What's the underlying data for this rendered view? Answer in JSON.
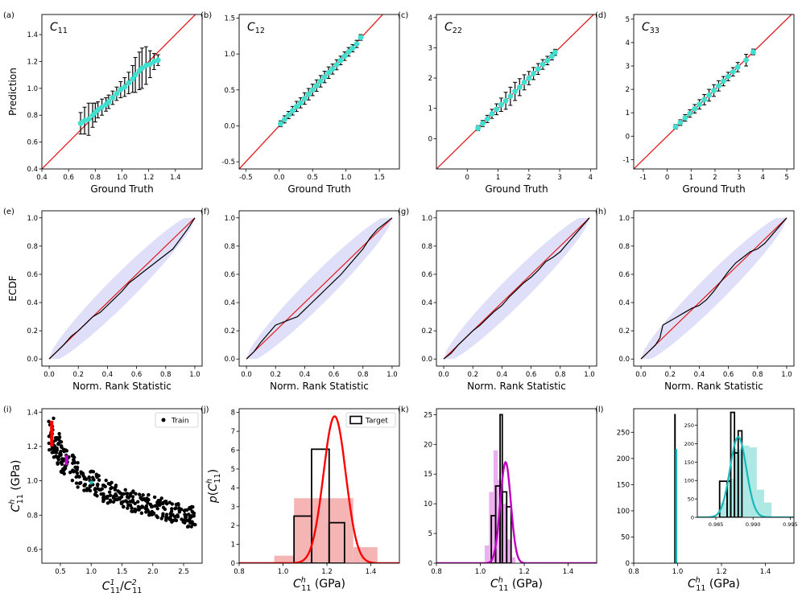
{
  "colors": {
    "identity": "#e41a1c",
    "pred_points": "#40e0d0",
    "error_bars": "#000000",
    "band": "#b8b8f5",
    "ecdf_line": "#000000",
    "train_points": "#000000",
    "red": "#ff0000",
    "red_hist": "#f4a3a3",
    "magenta": "#c000c0",
    "magenta_hist": "#e89be8",
    "teal": "#17b8b8",
    "teal_hist": "#9fe4e0"
  },
  "chart_data": [
    {
      "id": "a",
      "panel_label": "(a)",
      "type": "scatter",
      "title_base": "C",
      "title_sub": "11",
      "xlabel": "Ground Truth",
      "ylabel": "Prediction",
      "xlim": [
        0.4,
        1.6
      ],
      "ylim": [
        0.4,
        1.55
      ],
      "xticks": [
        0.4,
        0.6,
        0.8,
        1.0,
        1.2,
        1.4
      ],
      "yticks": [
        0.4,
        0.6,
        0.8,
        1.0,
        1.2,
        1.4
      ],
      "series": [
        {
          "name": "predictions",
          "x": [
            0.69,
            0.72,
            0.75,
            0.78,
            0.8,
            0.82,
            0.85,
            0.88,
            0.9,
            0.93,
            0.96,
            0.99,
            1.02,
            1.05,
            1.08,
            1.1,
            1.13,
            1.15,
            1.18,
            1.21,
            1.24,
            1.27
          ],
          "y": [
            0.74,
            0.76,
            0.77,
            0.8,
            0.82,
            0.84,
            0.86,
            0.88,
            0.9,
            0.93,
            0.96,
            0.99,
            1.01,
            1.04,
            1.07,
            1.1,
            1.13,
            1.15,
            1.17,
            1.18,
            1.2,
            1.21
          ],
          "err": [
            0.08,
            0.1,
            0.12,
            0.09,
            0.07,
            0.06,
            0.06,
            0.05,
            0.05,
            0.05,
            0.05,
            0.06,
            0.07,
            0.08,
            0.1,
            0.13,
            0.14,
            0.15,
            0.14,
            0.1,
            0.06,
            0.04
          ]
        }
      ]
    },
    {
      "id": "b",
      "panel_label": "(b)",
      "type": "scatter",
      "title_base": "C",
      "title_sub": "12",
      "xlabel": "Ground Truth",
      "ylabel": "",
      "xlim": [
        -0.6,
        1.8
      ],
      "ylim": [
        -0.6,
        1.55
      ],
      "xticks": [
        -0.5,
        0.0,
        0.5,
        1.0,
        1.5
      ],
      "yticks": [
        -0.5,
        0.0,
        0.5,
        1.0,
        1.5
      ],
      "series": [
        {
          "name": "predictions",
          "x": [
            0.02,
            0.08,
            0.14,
            0.2,
            0.26,
            0.32,
            0.38,
            0.44,
            0.5,
            0.56,
            0.62,
            0.68,
            0.74,
            0.8,
            0.86,
            0.92,
            0.98,
            1.04,
            1.1,
            1.16,
            1.22
          ],
          "y": [
            0.03,
            0.09,
            0.15,
            0.21,
            0.27,
            0.32,
            0.38,
            0.44,
            0.5,
            0.56,
            0.62,
            0.68,
            0.74,
            0.79,
            0.85,
            0.91,
            0.97,
            1.03,
            1.08,
            1.14,
            1.23
          ],
          "err": [
            0.04,
            0.05,
            0.05,
            0.06,
            0.07,
            0.07,
            0.08,
            0.08,
            0.08,
            0.08,
            0.08,
            0.08,
            0.08,
            0.07,
            0.07,
            0.06,
            0.06,
            0.06,
            0.05,
            0.05,
            0.04
          ]
        }
      ]
    },
    {
      "id": "c",
      "panel_label": "(c)",
      "type": "scatter",
      "title_base": "C",
      "title_sub": "22",
      "xlabel": "Ground Truth",
      "ylabel": "",
      "xlim": [
        -1.0,
        4.2
      ],
      "ylim": [
        -1.0,
        4.1
      ],
      "xticks": [
        0,
        1,
        2,
        3,
        4
      ],
      "yticks": [
        0,
        1,
        2,
        3,
        4
      ],
      "series": [
        {
          "name": "predictions",
          "x": [
            0.35,
            0.5,
            0.65,
            0.8,
            0.95,
            1.1,
            1.25,
            1.4,
            1.55,
            1.7,
            1.85,
            2.0,
            2.15,
            2.3,
            2.45,
            2.6,
            2.75,
            2.85
          ],
          "y": [
            0.35,
            0.5,
            0.65,
            0.82,
            0.97,
            1.12,
            1.25,
            1.4,
            1.56,
            1.7,
            1.86,
            2.0,
            2.15,
            2.3,
            2.45,
            2.58,
            2.72,
            2.85
          ],
          "err": [
            0.08,
            0.1,
            0.12,
            0.15,
            0.18,
            0.22,
            0.28,
            0.3,
            0.3,
            0.28,
            0.25,
            0.22,
            0.2,
            0.18,
            0.16,
            0.14,
            0.12,
            0.1
          ]
        }
      ]
    },
    {
      "id": "d",
      "panel_label": "(d)",
      "type": "scatter",
      "title_base": "C",
      "title_sub": "33",
      "xlabel": "Ground Truth",
      "ylabel": "",
      "xlim": [
        -1.4,
        5.3
      ],
      "ylim": [
        -1.4,
        5.2
      ],
      "xticks": [
        -1,
        0,
        1,
        2,
        3,
        4,
        5
      ],
      "yticks": [
        -1,
        0,
        1,
        2,
        3,
        4,
        5
      ],
      "series": [
        {
          "name": "predictions",
          "x": [
            0.35,
            0.55,
            0.75,
            0.95,
            1.15,
            1.35,
            1.55,
            1.75,
            1.95,
            2.15,
            2.35,
            2.55,
            2.75,
            2.95,
            3.3,
            3.6
          ],
          "y": [
            0.4,
            0.58,
            0.78,
            0.97,
            1.17,
            1.36,
            1.56,
            1.75,
            1.95,
            2.15,
            2.35,
            2.55,
            2.75,
            2.95,
            3.25,
            3.6
          ],
          "err": [
            0.1,
            0.12,
            0.14,
            0.16,
            0.18,
            0.2,
            0.22,
            0.25,
            0.25,
            0.22,
            0.2,
            0.18,
            0.18,
            0.2,
            0.25,
            0.12
          ]
        }
      ]
    },
    {
      "id": "e",
      "panel_label": "(e)",
      "type": "line",
      "xlabel": "Norm. Rank Statistic",
      "ylabel": "ECDF",
      "xlim": [
        -0.05,
        1.05
      ],
      "ylim": [
        -0.05,
        1.05
      ],
      "xticks": [
        0.0,
        0.2,
        0.4,
        0.6,
        0.8,
        1.0
      ],
      "yticks": [
        0.0,
        0.2,
        0.4,
        0.6,
        0.8,
        1.0
      ],
      "series": [
        {
          "name": "ECDF",
          "x": [
            0.0,
            0.05,
            0.1,
            0.15,
            0.2,
            0.25,
            0.3,
            0.35,
            0.4,
            0.45,
            0.5,
            0.55,
            0.6,
            0.65,
            0.7,
            0.75,
            0.8,
            0.85,
            0.9,
            0.95,
            1.0
          ],
          "y": [
            0.0,
            0.05,
            0.1,
            0.16,
            0.2,
            0.25,
            0.3,
            0.33,
            0.38,
            0.43,
            0.48,
            0.54,
            0.58,
            0.62,
            0.66,
            0.7,
            0.74,
            0.78,
            0.85,
            0.92,
            1.0
          ]
        }
      ]
    },
    {
      "id": "f",
      "panel_label": "(f)",
      "type": "line",
      "xlabel": "Norm. Rank Statistic",
      "ylabel": "",
      "xlim": [
        -0.05,
        1.05
      ],
      "ylim": [
        -0.05,
        1.05
      ],
      "xticks": [
        0.0,
        0.2,
        0.4,
        0.6,
        0.8,
        1.0
      ],
      "yticks": [
        0.0,
        0.2,
        0.4,
        0.6,
        0.8,
        1.0
      ],
      "series": [
        {
          "name": "ECDF",
          "x": [
            0.0,
            0.05,
            0.1,
            0.15,
            0.2,
            0.25,
            0.3,
            0.35,
            0.4,
            0.45,
            0.5,
            0.55,
            0.6,
            0.65,
            0.7,
            0.75,
            0.8,
            0.85,
            0.9,
            0.95,
            1.0
          ],
          "y": [
            0.0,
            0.05,
            0.12,
            0.18,
            0.24,
            0.26,
            0.28,
            0.3,
            0.35,
            0.4,
            0.45,
            0.5,
            0.55,
            0.6,
            0.66,
            0.72,
            0.78,
            0.86,
            0.92,
            0.96,
            1.0
          ]
        }
      ]
    },
    {
      "id": "g",
      "panel_label": "(g)",
      "type": "line",
      "xlabel": "Norm. Rank Statistic",
      "ylabel": "",
      "xlim": [
        -0.05,
        1.05
      ],
      "ylim": [
        -0.05,
        1.05
      ],
      "xticks": [
        0.0,
        0.2,
        0.4,
        0.6,
        0.8,
        1.0
      ],
      "yticks": [
        0.0,
        0.2,
        0.4,
        0.6,
        0.8,
        1.0
      ],
      "series": [
        {
          "name": "ECDF",
          "x": [
            0.0,
            0.05,
            0.1,
            0.15,
            0.2,
            0.25,
            0.3,
            0.35,
            0.4,
            0.45,
            0.5,
            0.55,
            0.6,
            0.65,
            0.7,
            0.75,
            0.8,
            0.85,
            0.9,
            0.95,
            1.0
          ],
          "y": [
            0.0,
            0.04,
            0.1,
            0.15,
            0.2,
            0.24,
            0.29,
            0.34,
            0.38,
            0.44,
            0.49,
            0.54,
            0.58,
            0.63,
            0.69,
            0.72,
            0.76,
            0.82,
            0.88,
            0.94,
            1.0
          ]
        }
      ]
    },
    {
      "id": "h",
      "panel_label": "(h)",
      "type": "line",
      "xlabel": "Norm. Rank Statistic",
      "ylabel": "",
      "xlim": [
        -0.05,
        1.05
      ],
      "ylim": [
        -0.05,
        1.05
      ],
      "xticks": [
        0.0,
        0.2,
        0.4,
        0.6,
        0.8,
        1.0
      ],
      "yticks": [
        0.0,
        0.2,
        0.4,
        0.6,
        0.8,
        1.0
      ],
      "series": [
        {
          "name": "ECDF",
          "x": [
            0.0,
            0.05,
            0.1,
            0.13,
            0.15,
            0.2,
            0.25,
            0.3,
            0.35,
            0.4,
            0.45,
            0.5,
            0.55,
            0.6,
            0.65,
            0.7,
            0.75,
            0.8,
            0.85,
            0.9,
            0.95,
            1.0
          ],
          "y": [
            0.0,
            0.05,
            0.1,
            0.15,
            0.24,
            0.27,
            0.3,
            0.33,
            0.36,
            0.38,
            0.42,
            0.48,
            0.55,
            0.62,
            0.68,
            0.72,
            0.76,
            0.78,
            0.82,
            0.88,
            0.94,
            1.0
          ]
        }
      ]
    },
    {
      "id": "i",
      "panel_label": "(i)",
      "type": "scatter",
      "xlabel": "C^1_11/C^2_11",
      "ylabel": "C^h_11 (GPa)",
      "xlim": [
        0.2,
        2.8
      ],
      "ylim": [
        0.52,
        1.42
      ],
      "xticks": [
        0.5,
        1.0,
        1.5,
        2.0,
        2.5
      ],
      "yticks": [
        0.6,
        0.8,
        1.0,
        1.2,
        1.4
      ],
      "legend": [
        "Train"
      ],
      "legend_position": "top-right",
      "series": [
        {
          "name": "Train",
          "x": [
            0.35,
            0.4,
            0.45,
            0.5,
            0.55,
            0.6,
            0.7,
            0.8,
            0.9,
            1.0,
            1.1,
            1.2,
            1.3,
            1.4,
            1.5,
            1.6,
            1.7,
            1.8,
            1.9,
            2.0,
            2.1,
            2.2,
            2.3,
            2.4,
            2.5,
            2.6,
            2.65
          ],
          "y": [
            1.27,
            1.22,
            1.19,
            1.16,
            1.13,
            1.11,
            1.07,
            1.04,
            1.01,
            0.99,
            0.97,
            0.95,
            0.93,
            0.92,
            0.9,
            0.89,
            0.88,
            0.87,
            0.86,
            0.85,
            0.84,
            0.83,
            0.82,
            0.81,
            0.8,
            0.79,
            0.79
          ],
          "spread": [
            0.1,
            0.1,
            0.09,
            0.09,
            0.08,
            0.08,
            0.08,
            0.08,
            0.07,
            0.07,
            0.07,
            0.07,
            0.06,
            0.06,
            0.06,
            0.06,
            0.06,
            0.06,
            0.06,
            0.06,
            0.06,
            0.06,
            0.06,
            0.06,
            0.06,
            0.06,
            0.06
          ]
        },
        {
          "name": "red_target",
          "x": 0.36,
          "y_range": [
            1.2,
            1.35
          ]
        },
        {
          "name": "magenta_target",
          "x": 0.6,
          "y_range": [
            1.09,
            1.15
          ]
        },
        {
          "name": "teal_target",
          "x": 1.0,
          "y_range": [
            0.98,
            1.0
          ]
        }
      ]
    },
    {
      "id": "j",
      "panel_label": "(j)",
      "type": "bar",
      "xlabel": "C^h_11 (GPa)",
      "ylabel": "p(C^h_11)",
      "xlim": [
        0.8,
        1.53
      ],
      "ylim": [
        0,
        8.2
      ],
      "xticks": [
        0.8,
        1.0,
        1.2,
        1.4
      ],
      "yticks": [
        0,
        1,
        2,
        3,
        4,
        5,
        6,
        7,
        8
      ],
      "legend": [
        "Target"
      ],
      "legend_position": "top-right",
      "series": [
        {
          "name": "predicted_hist",
          "edges": [
            0.96,
            1.05,
            1.16,
            1.32,
            1.43
          ],
          "values": [
            0.4,
            3.45,
            3.45,
            0.85
          ]
        },
        {
          "name": "Target",
          "edges": [
            1.05,
            1.13,
            1.21,
            1.28,
            1.35
          ],
          "values": [
            2.5,
            6.05,
            2.15,
            0.0
          ]
        },
        {
          "name": "density",
          "mean": 1.235,
          "sd": 0.051,
          "peak": 7.8
        }
      ]
    },
    {
      "id": "k",
      "panel_label": "(k)",
      "type": "bar",
      "xlabel": "C^h_11 (GPa)",
      "ylabel": "",
      "xlim": [
        0.8,
        1.53
      ],
      "ylim": [
        0,
        26
      ],
      "xticks": [
        0.8,
        1.0,
        1.2,
        1.4
      ],
      "yticks": [
        0,
        5,
        10,
        15,
        20,
        25
      ],
      "series": [
        {
          "name": "predicted_hist",
          "edges": [
            1.02,
            1.04,
            1.06,
            1.08,
            1.1,
            1.12,
            1.14,
            1.16
          ],
          "values": [
            3.0,
            12.0,
            19.0,
            14.0,
            10.0,
            4.0,
            1.0
          ]
        },
        {
          "name": "Target",
          "edges": [
            1.05,
            1.07,
            1.09,
            1.1,
            1.12,
            1.14
          ],
          "values": [
            8.0,
            13.0,
            25.0,
            12.0,
            9.5
          ]
        },
        {
          "name": "density",
          "mean": 1.115,
          "sd": 0.024,
          "peak": 17.0
        }
      ]
    },
    {
      "id": "l",
      "panel_label": "(l)",
      "type": "bar",
      "xlabel": "C^h_11 (GPa)",
      "ylabel": "",
      "xlim": [
        0.8,
        1.53
      ],
      "ylim": [
        0,
        295
      ],
      "xticks": [
        0.8,
        1.0,
        1.2,
        1.4
      ],
      "yticks": [
        0,
        50,
        100,
        150,
        200,
        250
      ],
      "series": [
        {
          "name": "main_spike",
          "x": 0.988,
          "peak_target": 285,
          "peak_density": 218
        },
        {
          "name": "inset",
          "xlim": [
            0.9825,
            0.9955
          ],
          "ylim": [
            0,
            295
          ],
          "xticks": [
            0.985,
            0.99,
            0.995
          ],
          "yticks": [
            0,
            50,
            100,
            150,
            200,
            250
          ],
          "predicted_hist": {
            "edges": [
              0.9855,
              0.9865,
              0.9875,
              0.9885,
              0.9895,
              0.9905,
              0.9915,
              0.9925
            ],
            "values": [
              40,
              105,
              185,
              195,
              190,
              75,
              40
            ]
          },
          "target_hist": {
            "edges": [
              0.9855,
              0.9865,
              0.987,
              0.9875,
              0.988,
              0.9885,
              0.989
            ],
            "values": [
              98,
              98,
              285,
              175,
              235,
              0
            ]
          },
          "density": {
            "mean": 0.988,
            "sd": 0.0011,
            "peak": 218
          }
        }
      ]
    }
  ]
}
